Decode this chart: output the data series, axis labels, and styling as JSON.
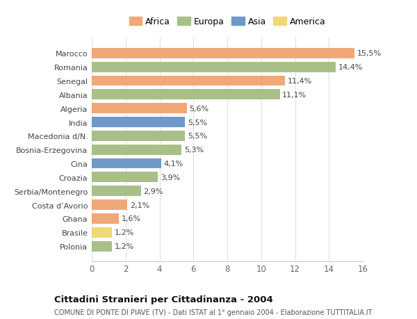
{
  "categories": [
    "Polonia",
    "Brasile",
    "Ghana",
    "Costa d’Avorio",
    "Serbia/Montenegro",
    "Croazia",
    "Cina",
    "Bosnia-Erzegovina",
    "Macedonia d/N.",
    "India",
    "Algeria",
    "Albania",
    "Senegal",
    "Romania",
    "Marocco"
  ],
  "values": [
    1.2,
    1.2,
    1.6,
    2.1,
    2.9,
    3.9,
    4.1,
    5.3,
    5.5,
    5.5,
    5.6,
    11.1,
    11.4,
    14.4,
    15.5
  ],
  "labels": [
    "1,2%",
    "1,2%",
    "1,6%",
    "2,1%",
    "2,9%",
    "3,9%",
    "4,1%",
    "5,3%",
    "5,5%",
    "5,5%",
    "5,6%",
    "11,1%",
    "11,4%",
    "14,4%",
    "15,5%"
  ],
  "continents": [
    "Europa",
    "America",
    "Africa",
    "Africa",
    "Europa",
    "Europa",
    "Asia",
    "Europa",
    "Europa",
    "Asia",
    "Africa",
    "Europa",
    "Africa",
    "Europa",
    "Africa"
  ],
  "continent_colors": {
    "Africa": "#F0A878",
    "Europa": "#A8C088",
    "Asia": "#7098C8",
    "America": "#F0D878"
  },
  "legend_order": [
    "Africa",
    "Europa",
    "Asia",
    "America"
  ],
  "title": "Cittadini Stranieri per Cittadinanza - 2004",
  "subtitle": "COMUNE DI PONTE DI PIAVE (TV) - Dati ISTAT al 1° gennaio 2004 - Elaborazione TUTTITALIA.IT",
  "xlim": [
    0,
    16
  ],
  "xticks": [
    0,
    2,
    4,
    6,
    8,
    10,
    12,
    14,
    16
  ],
  "background_color": "#ffffff",
  "grid_color": "#e0e0e0",
  "bar_height": 0.75
}
